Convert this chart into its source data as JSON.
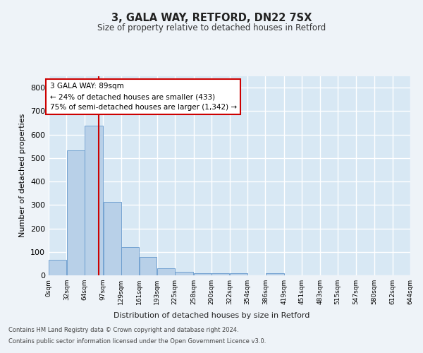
{
  "title1": "3, GALA WAY, RETFORD, DN22 7SX",
  "title2": "Size of property relative to detached houses in Retford",
  "xlabel": "Distribution of detached houses by size in Retford",
  "ylabel": "Number of detached properties",
  "bar_values": [
    65,
    533,
    638,
    313,
    120,
    77,
    30,
    16,
    10,
    8,
    8,
    0,
    10,
    0,
    0,
    0,
    0,
    0,
    0,
    0
  ],
  "bin_labels": [
    "0sqm",
    "32sqm",
    "64sqm",
    "97sqm",
    "129sqm",
    "161sqm",
    "193sqm",
    "225sqm",
    "258sqm",
    "290sqm",
    "322sqm",
    "354sqm",
    "386sqm",
    "419sqm",
    "451sqm",
    "483sqm",
    "515sqm",
    "547sqm",
    "580sqm",
    "612sqm",
    "644sqm"
  ],
  "bar_color": "#b8d0e8",
  "bar_edge_color": "#6699cc",
  "property_line_x": 89,
  "annotation_text": "3 GALA WAY: 89sqm\n← 24% of detached houses are smaller (433)\n75% of semi-detached houses are larger (1,342) →",
  "annotation_box_color": "#ffffff",
  "annotation_box_edge_color": "#cc0000",
  "ylim": [
    0,
    850
  ],
  "yticks": [
    0,
    100,
    200,
    300,
    400,
    500,
    600,
    700,
    800
  ],
  "footnote1": "Contains HM Land Registry data © Crown copyright and database right 2024.",
  "footnote2": "Contains public sector information licensed under the Open Government Licence v3.0.",
  "bg_color": "#eef3f8",
  "plot_bg_color": "#d8e8f4",
  "grid_color": "#ffffff",
  "vline_color": "#cc0000",
  "bin_edges": [
    0,
    32,
    64,
    97,
    129,
    161,
    193,
    225,
    258,
    290,
    322,
    354,
    386,
    419,
    451,
    483,
    515,
    547,
    580,
    612,
    644
  ]
}
